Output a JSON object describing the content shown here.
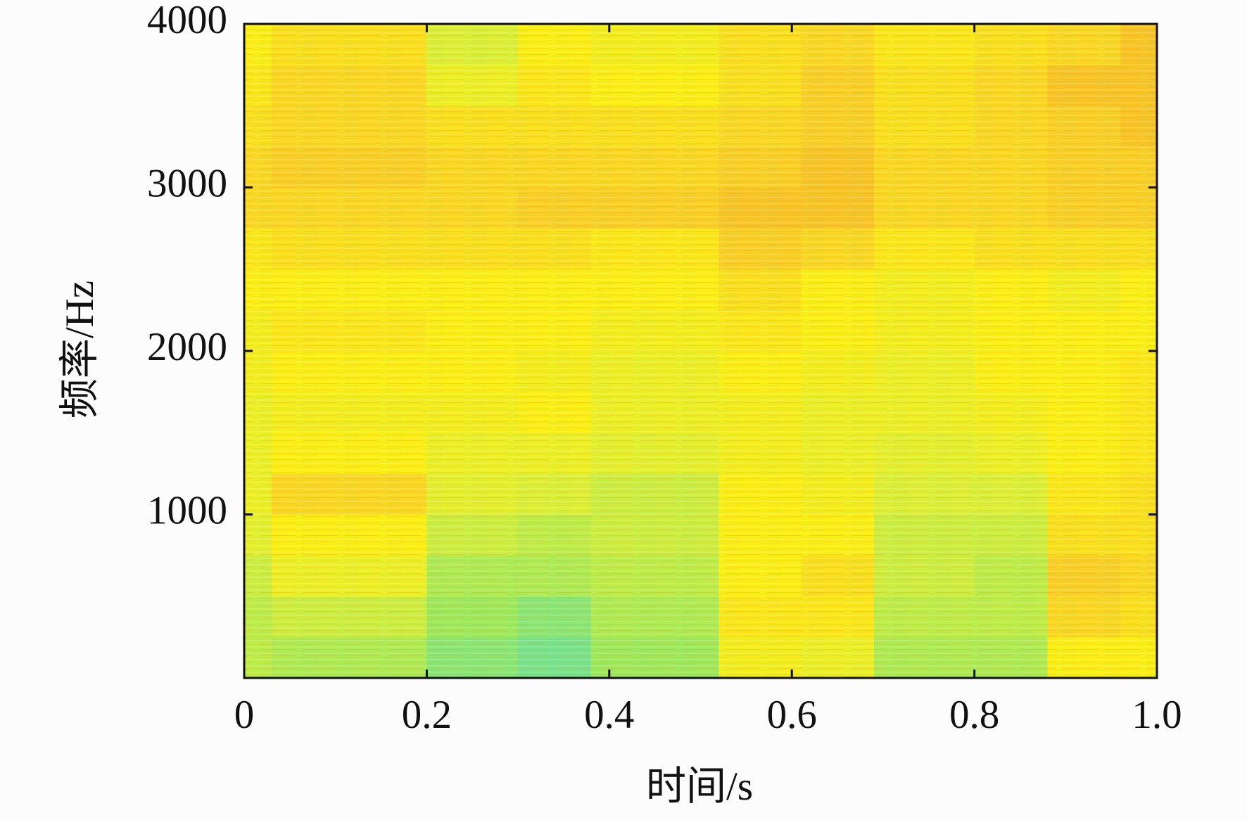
{
  "chart_data": {
    "type": "heatmap",
    "xlabel": "时间/s",
    "ylabel": "频率/Hz",
    "xlim": [
      0,
      1
    ],
    "ylim": [
      0,
      4000
    ],
    "xticks": [
      0,
      0.2,
      0.4,
      0.6,
      0.8,
      {
        "value": 1,
        "label": "1.0"
      }
    ],
    "yticks": [
      1000,
      2000,
      3000,
      4000
    ],
    "xbins": [
      0,
      0.03,
      0.2,
      0.3,
      0.38,
      0.52,
      0.61,
      0.69,
      0.8,
      0.88,
      0.96,
      1.0
    ],
    "ybins": [
      0,
      250,
      500,
      750,
      1000,
      1250,
      1500,
      1750,
      2000,
      2250,
      2500,
      2750,
      3000,
      3250,
      3500,
      3750,
      4000
    ],
    "vlim": [
      0,
      1
    ],
    "colormap": [
      "#4fdcb8",
      "#9ee85a",
      "#dcef34",
      "#fbee12",
      "#f9cf24",
      "#f2a424"
    ],
    "values": [
      [
        0.3,
        0.25,
        0.15,
        0.1,
        0.2,
        0.55,
        0.5,
        0.25,
        0.25,
        0.6,
        0.6
      ],
      [
        0.3,
        0.35,
        0.2,
        0.15,
        0.25,
        0.65,
        0.65,
        0.3,
        0.3,
        0.75,
        0.7
      ],
      [
        0.35,
        0.5,
        0.25,
        0.25,
        0.3,
        0.6,
        0.7,
        0.35,
        0.3,
        0.8,
        0.75
      ],
      [
        0.45,
        0.6,
        0.35,
        0.3,
        0.35,
        0.6,
        0.6,
        0.35,
        0.35,
        0.7,
        0.7
      ],
      [
        0.5,
        0.75,
        0.45,
        0.4,
        0.35,
        0.6,
        0.55,
        0.4,
        0.4,
        0.65,
        0.7
      ],
      [
        0.5,
        0.6,
        0.5,
        0.5,
        0.45,
        0.55,
        0.5,
        0.45,
        0.5,
        0.6,
        0.65
      ],
      [
        0.5,
        0.55,
        0.55,
        0.6,
        0.5,
        0.55,
        0.5,
        0.5,
        0.55,
        0.6,
        0.65
      ],
      [
        0.55,
        0.6,
        0.6,
        0.55,
        0.5,
        0.6,
        0.55,
        0.5,
        0.6,
        0.6,
        0.65
      ],
      [
        0.55,
        0.65,
        0.6,
        0.6,
        0.55,
        0.65,
        0.6,
        0.55,
        0.6,
        0.6,
        0.6
      ],
      [
        0.6,
        0.6,
        0.6,
        0.6,
        0.6,
        0.7,
        0.6,
        0.55,
        0.6,
        0.55,
        0.6
      ],
      [
        0.65,
        0.7,
        0.7,
        0.7,
        0.65,
        0.8,
        0.75,
        0.65,
        0.7,
        0.7,
        0.7
      ],
      [
        0.75,
        0.75,
        0.75,
        0.8,
        0.8,
        0.85,
        0.85,
        0.75,
        0.75,
        0.8,
        0.8
      ],
      [
        0.75,
        0.8,
        0.75,
        0.75,
        0.75,
        0.8,
        0.85,
        0.75,
        0.75,
        0.8,
        0.8
      ],
      [
        0.7,
        0.75,
        0.7,
        0.7,
        0.7,
        0.75,
        0.8,
        0.7,
        0.75,
        0.8,
        0.85
      ],
      [
        0.65,
        0.75,
        0.5,
        0.65,
        0.6,
        0.7,
        0.8,
        0.7,
        0.75,
        0.85,
        0.85
      ],
      [
        0.6,
        0.7,
        0.4,
        0.6,
        0.55,
        0.7,
        0.75,
        0.65,
        0.7,
        0.75,
        0.85
      ]
    ]
  }
}
